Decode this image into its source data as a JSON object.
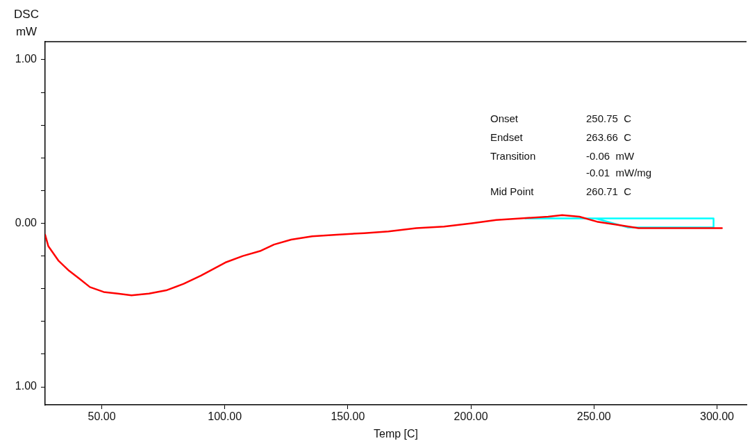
{
  "chart_data": {
    "type": "line",
    "xlabel": "Temp [C]",
    "ylabel": "DSC mW",
    "xlim": [
      27,
      312
    ],
    "xticks": [
      {
        "value": 50,
        "label": "50.00"
      },
      {
        "value": 100,
        "label": "100.00"
      },
      {
        "value": 150,
        "label": "150.00"
      },
      {
        "value": 200,
        "label": "200.00"
      },
      {
        "value": 250,
        "label": "250.00"
      },
      {
        "value": 300,
        "label": "300.00"
      }
    ],
    "ylim": [
      -1.11,
      1.11
    ],
    "yticks": [
      {
        "value": -1,
        "label": "1.00"
      },
      {
        "value": -0.8,
        "label": null
      },
      {
        "value": -0.6,
        "label": null
      },
      {
        "value": -0.4,
        "label": null
      },
      {
        "value": -0.2,
        "label": null
      },
      {
        "value": 0,
        "label": "0.00"
      },
      {
        "value": 0.2,
        "label": null
      },
      {
        "value": 0.4,
        "label": null
      },
      {
        "value": 0.6,
        "label": null
      },
      {
        "value": 0.8,
        "label": null
      },
      {
        "value": 1,
        "label": "1.00"
      }
    ],
    "grid": false,
    "legend": false,
    "marker": "none",
    "line_style": "solid",
    "series": [
      {
        "color": "#ff0000",
        "x": [
          27.0,
          28.3,
          32.5,
          36.7,
          41.0,
          45.2,
          50.8,
          56.5,
          62.1,
          69.2,
          76.2,
          83.3,
          90.3,
          100.2,
          107.3,
          114.3,
          120.0,
          127.0,
          135.5,
          145.4,
          156.7,
          166.5,
          177.8,
          189.1,
          200.4,
          210.3,
          220.2,
          231.4,
          237.1,
          244.1,
          251.2,
          259.6,
          268.1,
          276.6,
          286.5,
          296.3,
          302.0
        ],
        "values": [
          -0.07,
          -0.14,
          -0.23,
          -0.29,
          -0.34,
          -0.39,
          -0.42,
          -0.43,
          -0.44,
          -0.43,
          -0.41,
          -0.37,
          -0.32,
          -0.24,
          -0.2,
          -0.17,
          -0.13,
          -0.1,
          -0.08,
          -0.07,
          -0.06,
          -0.05,
          -0.03,
          -0.02,
          0.0,
          0.02,
          0.03,
          0.04,
          0.05,
          0.04,
          0.01,
          -0.01,
          -0.03,
          -0.03,
          -0.03,
          -0.03,
          -0.03
        ]
      },
      {
        "color": "#00ffff",
        "x": [
          222.1,
          298.6,
          298.6,
          263.66,
          250.75
        ],
        "values": [
          0.03,
          0.03,
          -0.025,
          -0.025,
          0.03
        ]
      }
    ],
    "annotations": [
      "Onset",
      "250.75  C",
      "Endset",
      "263.66  C",
      "Transition",
      "-0.06  mW",
      "-0.01  mW/mg",
      "Mid Point",
      "260.71  C"
    ]
  }
}
